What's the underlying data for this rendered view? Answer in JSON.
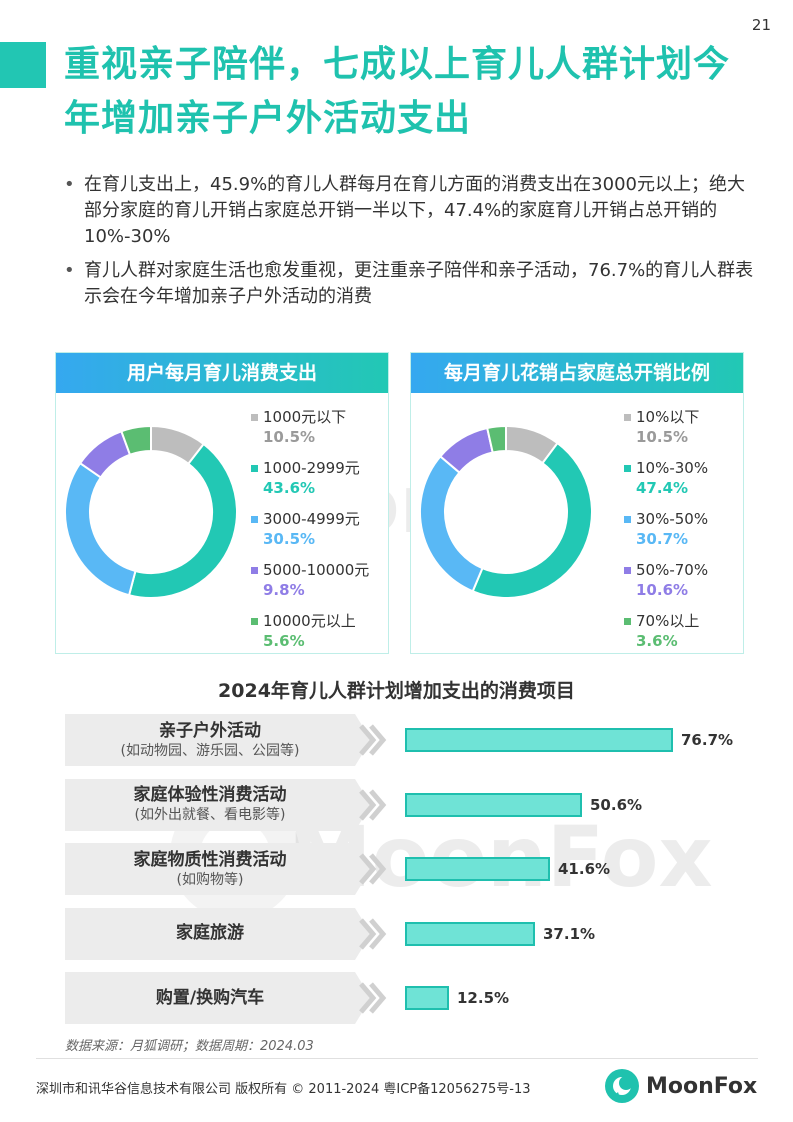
{
  "page_number": "21",
  "title": "重视亲子陪伴，七成以上育儿人群计划今年增加亲子户外活动支出",
  "bullets": [
    "在育儿支出上，45.9%的育儿人群每月在育儿方面的消费支出在3000元以上；绝大部分家庭的育儿开销占家庭总开销一半以下，47.4%的家庭育儿开销占总开销的10%-30%",
    "育儿人群对家庭生活也愈发重视，更注重亲子陪伴和亲子活动，76.7%的育儿人群表示会在今年增加亲子户外活动的消费"
  ],
  "watermark": "MoonFox",
  "chart_data": [
    {
      "type": "pie",
      "style": "donut",
      "title": "用户每月育儿消费支出",
      "legend_position": "right",
      "slices": [
        {
          "label": "1000元以下",
          "pct_label": "10.5%",
          "value": 10.5,
          "color": "#bdbdbd"
        },
        {
          "label": "1000-2999元",
          "pct_label": "43.6%",
          "value": 43.6,
          "color": "#22c8b4"
        },
        {
          "label": "3000-4999元",
          "pct_label": "30.5%",
          "value": 30.5,
          "color": "#59b8f5"
        },
        {
          "label": "5000-10000元",
          "pct_label": "9.8%",
          "value": 9.8,
          "color": "#8f7de6"
        },
        {
          "label": "10000元以上",
          "pct_label": "5.6%",
          "value": 5.6,
          "color": "#5bbd72"
        }
      ]
    },
    {
      "type": "pie",
      "style": "donut",
      "title": "每月育儿花销占家庭总开销比例",
      "legend_position": "right",
      "slices": [
        {
          "label": "10%以下",
          "pct_label": "10.5%",
          "value": 10.5,
          "color": "#bdbdbd"
        },
        {
          "label": "10%-30%",
          "pct_label": "47.4%",
          "value": 47.4,
          "color": "#22c8b4"
        },
        {
          "label": "30%-50%",
          "pct_label": "30.7%",
          "value": 30.7,
          "color": "#59b8f5"
        },
        {
          "label": "50%-70%",
          "pct_label": "10.6%",
          "value": 10.6,
          "color": "#8f7de6"
        },
        {
          "label": "70%以上",
          "pct_label": "3.6%",
          "value": 3.6,
          "color": "#5bbd72"
        }
      ]
    },
    {
      "type": "bar",
      "orientation": "horizontal",
      "title": "2024年育儿人群计划增加支出的消费项目",
      "xlim": [
        0,
        100
      ],
      "bar_color": "#6fe3d6",
      "categories": [
        {
          "name": "亲子户外活动",
          "sub": "(如动物园、游乐园、公园等)",
          "value": 76.7,
          "value_label": "76.7%"
        },
        {
          "name": "家庭体验性消费活动",
          "sub": "(如外出就餐、看电影等)",
          "value": 50.6,
          "value_label": "50.6%"
        },
        {
          "name": "家庭物质性消费活动",
          "sub": "(如购物等)",
          "value": 41.6,
          "value_label": "41.6%"
        },
        {
          "name": "家庭旅游",
          "sub": "",
          "value": 37.1,
          "value_label": "37.1%"
        },
        {
          "name": "购置/换购汽车",
          "sub": "",
          "value": 12.5,
          "value_label": "12.5%"
        }
      ]
    }
  ],
  "source": "数据来源：月狐调研；数据周期：2024.03",
  "footer": "深圳市和讯华谷信息技术有限公司 版权所有 © 2011-2024 粤ICP备12056275号-13",
  "brand": "MoonFox"
}
